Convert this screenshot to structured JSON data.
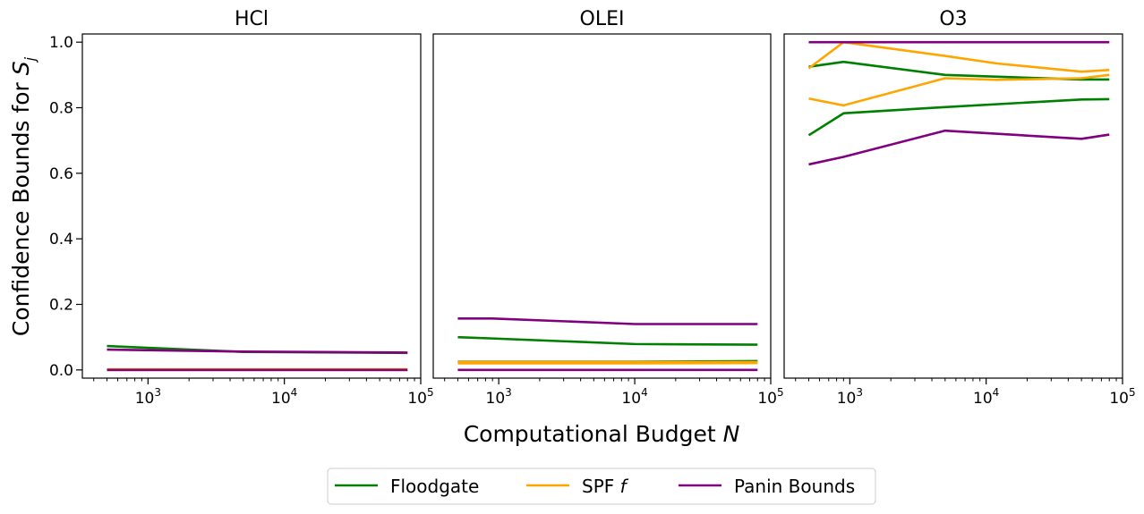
{
  "figure": {
    "xlabel": "Computational Budget",
    "xlabel_var": "N",
    "ylabel": "Confidence Bounds for",
    "ylabel_var": "S",
    "ylabel_sub": "j"
  },
  "colors": {
    "Floodgate": "#008000",
    "SPF": "#FFA500",
    "Panin": "#800080"
  },
  "legend": [
    {
      "key": "Floodgate",
      "label": "Floodgate",
      "italic": ""
    },
    {
      "key": "SPF",
      "label": "SPF",
      "italic": "f"
    },
    {
      "key": "Panin",
      "label": "Panin Bounds",
      "italic": ""
    }
  ],
  "y_ticks": [
    "0.0",
    "0.2",
    "0.4",
    "0.6",
    "0.8",
    "1.0"
  ],
  "x_ticks": [
    {
      "base": "10",
      "exp": "3"
    },
    {
      "base": "10",
      "exp": "4"
    },
    {
      "base": "10",
      "exp": "5"
    }
  ],
  "chart_data": [
    {
      "type": "line",
      "title": "HCl",
      "xscale": "log",
      "xlim": [
        330,
        100000
      ],
      "ylim": [
        -0.025,
        1.025
      ],
      "series": [
        {
          "name": "Floodgate",
          "x": [
            500,
            5000,
            80000
          ],
          "y": [
            0.073,
            0.055,
            0.052
          ]
        },
        {
          "name": "Floodgate",
          "x": [
            500,
            5000,
            80000
          ],
          "y": [
            0.0,
            0.0,
            0.0
          ]
        },
        {
          "name": "SPF f",
          "x": [
            500,
            5000,
            80000
          ],
          "y": [
            0.002,
            0.002,
            0.002
          ]
        },
        {
          "name": "SPF f",
          "x": [
            500,
            5000,
            80000
          ],
          "y": [
            0.0,
            0.0,
            0.0
          ]
        },
        {
          "name": "Panin Bounds",
          "x": [
            500,
            5000,
            80000
          ],
          "y": [
            0.062,
            0.056,
            0.053
          ]
        },
        {
          "name": "Panin Bounds",
          "x": [
            500,
            5000,
            80000
          ],
          "y": [
            0.0,
            0.0,
            0.0
          ]
        }
      ]
    },
    {
      "type": "line",
      "title": "OLEI",
      "xscale": "log",
      "xlim": [
        330,
        100000
      ],
      "ylim": [
        -0.025,
        1.025
      ],
      "series": [
        {
          "name": "Floodgate",
          "x": [
            500,
            900,
            10000,
            80000
          ],
          "y": [
            0.1,
            0.096,
            0.079,
            0.077
          ]
        },
        {
          "name": "Floodgate",
          "x": [
            500,
            900,
            10000,
            80000
          ],
          "y": [
            0.025,
            0.025,
            0.025,
            0.027
          ]
        },
        {
          "name": "SPF f",
          "x": [
            500,
            900,
            10000,
            80000
          ],
          "y": [
            0.024,
            0.024,
            0.024,
            0.024
          ]
        },
        {
          "name": "SPF f",
          "x": [
            500,
            900,
            10000,
            80000
          ],
          "y": [
            0.02,
            0.02,
            0.02,
            0.021
          ]
        },
        {
          "name": "Panin Bounds",
          "x": [
            500,
            900,
            10000,
            80000
          ],
          "y": [
            0.157,
            0.157,
            0.14,
            0.14
          ]
        },
        {
          "name": "Panin Bounds",
          "x": [
            500,
            900,
            10000,
            80000
          ],
          "y": [
            0.0,
            0.0,
            0.0,
            0.0
          ]
        }
      ]
    },
    {
      "type": "line",
      "title": "O3",
      "xscale": "log",
      "xlim": [
        330,
        100000
      ],
      "ylim": [
        -0.025,
        1.025
      ],
      "series": [
        {
          "name": "Floodgate",
          "x": [
            500,
            900,
            5000,
            50000,
            80000
          ],
          "y": [
            0.925,
            0.94,
            0.9,
            0.886,
            0.886
          ]
        },
        {
          "name": "Floodgate",
          "x": [
            500,
            900,
            5000,
            50000,
            80000
          ],
          "y": [
            0.716,
            0.783,
            0.802,
            0.825,
            0.826
          ]
        },
        {
          "name": "SPF f",
          "x": [
            500,
            900,
            5000,
            12000,
            50000,
            80000
          ],
          "y": [
            0.92,
            1.0,
            0.958,
            0.935,
            0.91,
            0.915
          ]
        },
        {
          "name": "SPF f",
          "x": [
            500,
            900,
            5000,
            12000,
            50000,
            80000
          ],
          "y": [
            0.828,
            0.807,
            0.89,
            0.885,
            0.89,
            0.9
          ]
        },
        {
          "name": "Panin Bounds",
          "x": [
            500,
            900,
            5000,
            50000,
            80000
          ],
          "y": [
            1.0,
            1.0,
            1.0,
            1.0,
            1.0
          ]
        },
        {
          "name": "Panin Bounds",
          "x": [
            500,
            900,
            5000,
            50000,
            80000
          ],
          "y": [
            0.627,
            0.65,
            0.73,
            0.705,
            0.718
          ]
        }
      ]
    }
  ]
}
